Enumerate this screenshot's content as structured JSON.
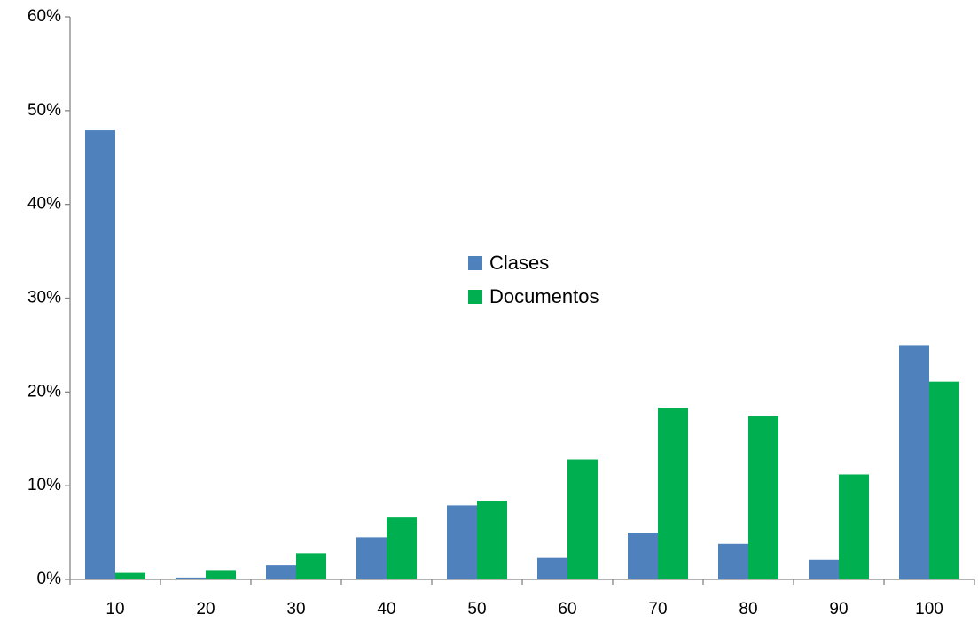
{
  "chart_data": {
    "type": "bar",
    "categories": [
      "10",
      "20",
      "30",
      "40",
      "50",
      "60",
      "70",
      "80",
      "90",
      "100"
    ],
    "series": [
      {
        "name": "Clases",
        "color": "#4f81bd",
        "values": [
          47.9,
          0.2,
          1.5,
          4.5,
          7.9,
          2.3,
          5.0,
          3.8,
          2.1,
          25.0
        ]
      },
      {
        "name": "Documentos",
        "color": "#00b050",
        "values": [
          0.7,
          1.0,
          2.8,
          6.6,
          8.4,
          12.8,
          18.3,
          17.4,
          11.2,
          21.1
        ]
      }
    ],
    "ylim": [
      0,
      60
    ],
    "yticks": [
      {
        "value": 0,
        "label": "0%"
      },
      {
        "value": 10,
        "label": "10%"
      },
      {
        "value": 20,
        "label": "20%"
      },
      {
        "value": 30,
        "label": "30%"
      },
      {
        "value": 40,
        "label": "40%"
      },
      {
        "value": 50,
        "label": "50%"
      },
      {
        "value": 60,
        "label": "60%"
      }
    ],
    "grid": false,
    "legend": "center"
  }
}
